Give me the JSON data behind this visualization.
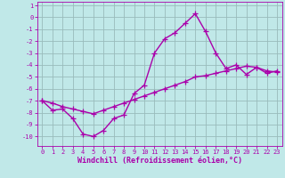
{
  "xlabel": "Windchill (Refroidissement éolien,°C)",
  "background_color": "#c0e8e8",
  "grid_color": "#99bbbb",
  "line_color": "#aa00aa",
  "x_values": [
    0,
    1,
    2,
    3,
    4,
    5,
    6,
    7,
    8,
    9,
    10,
    11,
    12,
    13,
    14,
    15,
    16,
    17,
    18,
    19,
    20,
    21,
    22,
    23
  ],
  "line1_y": [
    -7.0,
    -7.8,
    -7.7,
    -8.5,
    -9.8,
    -10.0,
    -9.5,
    -8.5,
    -8.2,
    -6.4,
    -5.7,
    -3.0,
    -1.8,
    -1.3,
    -0.5,
    0.3,
    -1.2,
    -3.0,
    -4.3,
    -4.0,
    -4.8,
    -4.2,
    -4.7,
    -4.5
  ],
  "line2_y": [
    -7.0,
    -7.2,
    -7.5,
    -7.7,
    -7.9,
    -8.1,
    -7.8,
    -7.5,
    -7.2,
    -6.9,
    -6.6,
    -6.3,
    -6.0,
    -5.7,
    -5.4,
    -5.0,
    -4.9,
    -4.7,
    -4.5,
    -4.3,
    -4.1,
    -4.2,
    -4.5,
    -4.6
  ],
  "ylim": [
    -10.8,
    1.3
  ],
  "xlim": [
    -0.5,
    23.5
  ],
  "yticks": [
    1,
    0,
    -1,
    -2,
    -3,
    -4,
    -5,
    -6,
    -7,
    -8,
    -9,
    -10
  ],
  "xticks": [
    0,
    1,
    2,
    3,
    4,
    5,
    6,
    7,
    8,
    9,
    10,
    11,
    12,
    13,
    14,
    15,
    16,
    17,
    18,
    19,
    20,
    21,
    22,
    23
  ],
  "marker": "+",
  "markersize": 4,
  "linewidth": 1.0
}
